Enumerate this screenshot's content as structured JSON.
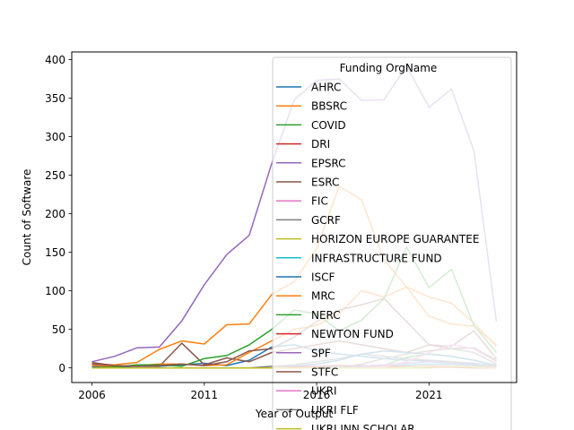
{
  "chart_data": {
    "type": "line",
    "title": "",
    "xlabel": "Year of Output",
    "ylabel": "Count of Software",
    "xlim": [
      2005.1,
      2024.9
    ],
    "ylim": [
      -19,
      410
    ],
    "xticks": [
      2006,
      2011,
      2016,
      2021
    ],
    "yticks": [
      0,
      50,
      100,
      150,
      200,
      250,
      300,
      350,
      400
    ],
    "grid": false,
    "legend": {
      "title": "Funding OrgName",
      "placement": "upper-right"
    },
    "x": [
      2006,
      2007,
      2008,
      2009,
      2010,
      2011,
      2012,
      2013,
      2014,
      2015,
      2016,
      2017,
      2018,
      2019,
      2020,
      2021,
      2022,
      2023,
      2024
    ],
    "series": [
      {
        "name": "AHRC",
        "color": "#1f77b4",
        "values": [
          1,
          1,
          2,
          2,
          4,
          6,
          3,
          10,
          27,
          30,
          22,
          18,
          15,
          12,
          10,
          9,
          8,
          6,
          2
        ]
      },
      {
        "name": "BBSRC",
        "color": "#ff7f0e",
        "values": [
          5,
          4,
          7,
          24,
          35,
          31,
          56,
          57,
          95,
          112,
          155,
          236,
          218,
          140,
          105,
          92,
          84,
          58,
          28
        ]
      },
      {
        "name": "COVID",
        "color": "#2ca02c",
        "values": [
          0,
          0,
          0,
          0,
          0,
          0,
          0,
          0,
          0,
          0,
          0,
          0,
          0,
          3,
          14,
          18,
          15,
          10,
          3
        ]
      },
      {
        "name": "DRI",
        "color": "#d62728",
        "values": [
          0,
          0,
          0,
          0,
          0,
          0,
          0,
          0,
          0,
          0,
          0,
          0,
          0,
          0,
          1,
          2,
          2,
          1,
          0
        ]
      },
      {
        "name": "EPSRC",
        "color": "#9467bd",
        "values": [
          8,
          15,
          26,
          27,
          61,
          108,
          147,
          172,
          265,
          348,
          373,
          375,
          347,
          348,
          392,
          338,
          362,
          282,
          60
        ]
      },
      {
        "name": "ESRC",
        "color": "#8c564b",
        "values": [
          7,
          3,
          2,
          2,
          32,
          4,
          13,
          8,
          20,
          25,
          30,
          35,
          30,
          25,
          20,
          30,
          28,
          48,
          12
        ]
      },
      {
        "name": "FIC",
        "color": "#e377c2",
        "values": [
          0,
          0,
          0,
          0,
          0,
          0,
          0,
          0,
          0,
          0,
          1,
          1,
          2,
          2,
          3,
          4,
          3,
          2,
          1
        ]
      },
      {
        "name": "GCRF",
        "color": "#7f7f7f",
        "values": [
          0,
          0,
          0,
          0,
          0,
          0,
          0,
          0,
          2,
          4,
          8,
          12,
          18,
          15,
          12,
          10,
          8,
          5,
          2
        ]
      },
      {
        "name": "HORIZON EUROPE GUARANTEE",
        "color": "#bcbd22",
        "values": [
          0,
          0,
          0,
          0,
          0,
          0,
          0,
          0,
          0,
          0,
          0,
          0,
          0,
          0,
          0,
          0,
          2,
          4,
          2
        ]
      },
      {
        "name": "INFRASTRUCTURE FUND",
        "color": "#17becf",
        "values": [
          0,
          0,
          0,
          0,
          0,
          0,
          0,
          0,
          0,
          0,
          0,
          1,
          2,
          3,
          4,
          5,
          5,
          3,
          1
        ]
      },
      {
        "name": "ISCF",
        "color": "#1f77b4",
        "values": [
          0,
          0,
          0,
          0,
          0,
          0,
          0,
          0,
          0,
          2,
          5,
          10,
          18,
          22,
          20,
          18,
          15,
          10,
          3
        ]
      },
      {
        "name": "MRC",
        "color": "#ff7f0e",
        "values": [
          3,
          2,
          3,
          5,
          5,
          3,
          4,
          20,
          35,
          50,
          55,
          70,
          100,
          92,
          105,
          67,
          57,
          54,
          30
        ]
      },
      {
        "name": "NERC",
        "color": "#2ca02c",
        "values": [
          0,
          1,
          4,
          4,
          2,
          12,
          16,
          30,
          50,
          75,
          70,
          48,
          62,
          90,
          157,
          104,
          128,
          55,
          20
        ]
      },
      {
        "name": "NEWTON FUND",
        "color": "#d62728",
        "values": [
          0,
          0,
          0,
          0,
          0,
          0,
          0,
          0,
          0,
          1,
          2,
          3,
          3,
          2,
          2,
          1,
          1,
          0,
          0
        ]
      },
      {
        "name": "SPF",
        "color": "#9467bd",
        "values": [
          0,
          0,
          0,
          0,
          0,
          0,
          0,
          0,
          0,
          0,
          0,
          0,
          2,
          4,
          6,
          8,
          6,
          4,
          1
        ]
      },
      {
        "name": "STFC",
        "color": "#8c564b",
        "values": [
          5,
          3,
          2,
          3,
          5,
          3,
          8,
          22,
          25,
          40,
          60,
          75,
          82,
          90,
          60,
          30,
          25,
          26,
          10
        ]
      },
      {
        "name": "UKRI",
        "color": "#e377c2",
        "values": [
          0,
          0,
          0,
          0,
          0,
          0,
          0,
          0,
          0,
          0,
          0,
          0,
          0,
          2,
          8,
          20,
          30,
          25,
          8
        ]
      },
      {
        "name": "UKRI FLF",
        "color": "#7f7f7f",
        "values": [
          0,
          0,
          0,
          0,
          0,
          0,
          0,
          0,
          0,
          0,
          0,
          0,
          5,
          12,
          18,
          22,
          25,
          20,
          5
        ]
      },
      {
        "name": "UKRI INN.SCHOLAR",
        "color": "#bcbd22",
        "values": [
          0,
          0,
          0,
          0,
          0,
          0,
          0,
          0,
          0,
          0,
          0,
          0,
          0,
          0,
          1,
          2,
          2,
          1,
          0
        ]
      }
    ]
  }
}
